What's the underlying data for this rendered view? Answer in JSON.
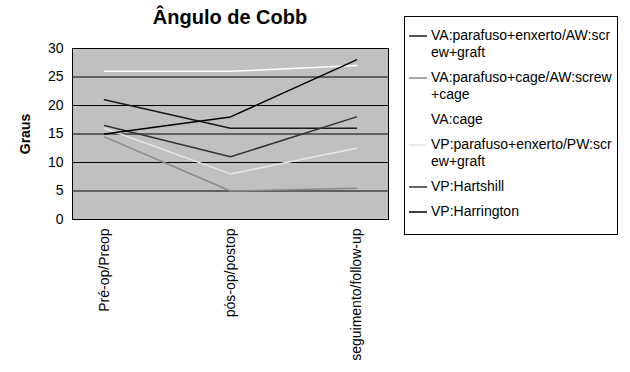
{
  "chart_data": {
    "type": "line",
    "title": "Ângulo de Cobb",
    "ylabel": "Graus",
    "categories": [
      "Pré-op/Preop",
      "pós-op/postop",
      "seguimento/follow-up"
    ],
    "series": [
      {
        "name": "VA:parafuso+enxerto/AW:screw+graft",
        "color": "#1a1a1a",
        "values": [
          21,
          16,
          16
        ]
      },
      {
        "name": "VA:parafuso+cage/AW:screw+cage",
        "color": "#8a8a8a",
        "values": [
          14.5,
          5,
          5.5
        ]
      },
      {
        "name": "VA:cage",
        "color": "#ffffff",
        "values": [
          26,
          26,
          27
        ]
      },
      {
        "name": "VP:parafuso+enxerto/PW:screw+graft",
        "color": "#e6e6e6",
        "values": [
          16,
          8,
          12.5
        ]
      },
      {
        "name": "VP:Hartshill",
        "color": "#333333",
        "values": [
          16.5,
          11,
          18
        ]
      },
      {
        "name": "VP:Harrington",
        "color": "#000000",
        "values": [
          15,
          18,
          28
        ]
      }
    ],
    "ylim": [
      0,
      30
    ],
    "yticks": [
      0,
      5,
      10,
      15,
      20,
      25,
      30
    ],
    "grid": true,
    "legend": "right"
  }
}
